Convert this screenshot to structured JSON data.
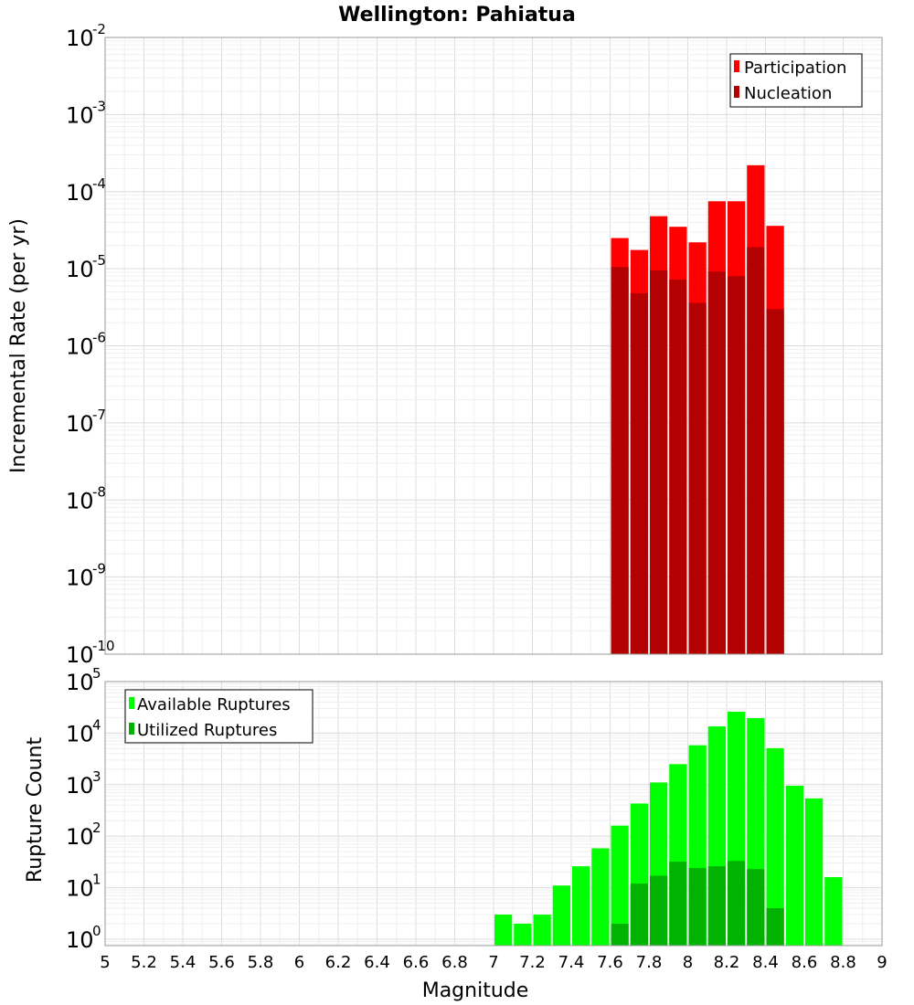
{
  "chart_data": [
    {
      "type": "bar",
      "title": "Wellington: Pahiatua",
      "xlabel": "",
      "ylabel": "Incremental Rate (per yr)",
      "yscale": "log",
      "ylim": [
        1e-10,
        0.01
      ],
      "xlim": [
        5,
        9
      ],
      "bin_width": 0.1,
      "legend_position": "top-right",
      "series": [
        {
          "name": "Participation",
          "color": "#ff0000",
          "x": [
            7.65,
            7.75,
            7.85,
            7.95,
            8.05,
            8.15,
            8.25,
            8.35,
            8.45
          ],
          "values": [
            2.5e-05,
            1.75e-05,
            4.8e-05,
            3.5e-05,
            2.2e-05,
            7.5e-05,
            7.5e-05,
            0.00022,
            3.6e-05
          ]
        },
        {
          "name": "Nucleation",
          "color": "#b30000",
          "x": [
            7.65,
            7.75,
            7.85,
            7.95,
            8.05,
            8.15,
            8.25,
            8.35,
            8.45
          ],
          "values": [
            1.05e-05,
            4.8e-06,
            9.5e-06,
            7.2e-06,
            3.6e-06,
            9.2e-06,
            8e-06,
            1.9e-05,
            3e-06
          ]
        }
      ]
    },
    {
      "type": "bar",
      "title": "",
      "xlabel": "Magnitude",
      "ylabel": "Rupture Count",
      "yscale": "log",
      "ylim": [
        0.75,
        100000
      ],
      "xlim": [
        5,
        9
      ],
      "bin_width": 0.1,
      "legend_position": "top-left",
      "series": [
        {
          "name": "Available Ruptures",
          "color": "#00ff00",
          "x": [
            7.05,
            7.15,
            7.25,
            7.35,
            7.45,
            7.55,
            7.65,
            7.75,
            7.85,
            7.95,
            8.05,
            8.15,
            8.25,
            8.35,
            8.45,
            8.55,
            8.65,
            8.75
          ],
          "values": [
            3,
            2,
            3,
            11,
            26,
            58,
            160,
            430,
            1100,
            2500,
            5800,
            13500,
            26000,
            19500,
            5100,
            950,
            540,
            16
          ]
        },
        {
          "name": "Utilized Ruptures",
          "color": "#00b300",
          "x": [
            7.65,
            7.75,
            7.85,
            7.95,
            8.05,
            8.15,
            8.25,
            8.35,
            8.45
          ],
          "values": [
            2,
            12,
            17,
            32,
            24,
            26,
            33,
            23,
            4
          ]
        }
      ]
    }
  ],
  "xticks": [
    "5",
    "5.2",
    "5.4",
    "5.6",
    "5.8",
    "6",
    "6.2",
    "6.4",
    "6.6",
    "6.8",
    "7",
    "7.2",
    "7.4",
    "7.6",
    "7.8",
    "8",
    "8.2",
    "8.4",
    "8.6",
    "8.8",
    "9"
  ],
  "top_yticks": [
    {
      "base": "10",
      "exp": "-10"
    },
    {
      "base": "10",
      "exp": "-9"
    },
    {
      "base": "10",
      "exp": "-8"
    },
    {
      "base": "10",
      "exp": "-7"
    },
    {
      "base": "10",
      "exp": "-6"
    },
    {
      "base": "10",
      "exp": "-5"
    },
    {
      "base": "10",
      "exp": "-4"
    },
    {
      "base": "10",
      "exp": "-3"
    },
    {
      "base": "10",
      "exp": "-2"
    }
  ],
  "bottom_yticks": [
    {
      "base": "10",
      "exp": "0"
    },
    {
      "base": "10",
      "exp": "1"
    },
    {
      "base": "10",
      "exp": "2"
    },
    {
      "base": "10",
      "exp": "3"
    },
    {
      "base": "10",
      "exp": "4"
    },
    {
      "base": "10",
      "exp": "5"
    }
  ]
}
